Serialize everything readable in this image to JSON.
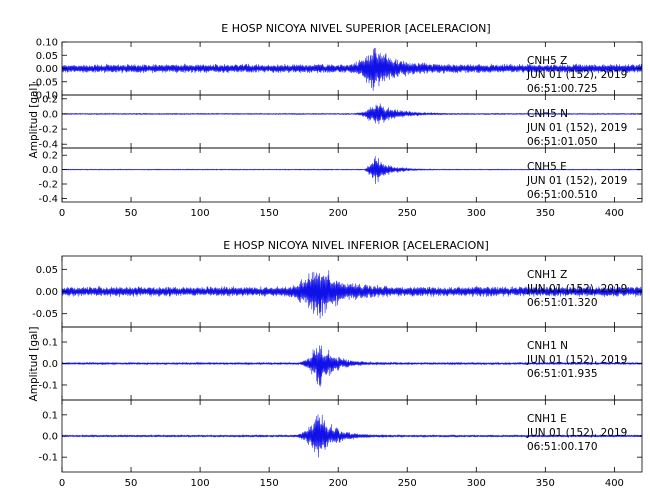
{
  "chart_data": [
    {
      "type": "line",
      "title": "E HOSP NICOYA NIVEL SUPERIOR [ACELERACION]",
      "ylabel": "Amplitud [gal]",
      "xlim": [
        0,
        420
      ],
      "xticks": [
        "0",
        "50",
        "100",
        "150",
        "200",
        "250",
        "300",
        "350",
        "400"
      ],
      "panels": [
        {
          "name": "CNH5 Z",
          "info": [
            "CNH5  Z",
            "JUN 01 (152), 2019",
            "06:51:00.725"
          ],
          "ylim": [
            -0.1,
            0.1
          ],
          "yticks": [
            {
              "v": 0.1,
              "t": "0.10"
            },
            {
              "v": 0.05,
              "t": "0.05"
            },
            {
              "v": 0.0,
              "t": "0.00"
            },
            {
              "v": -0.05,
              "t": "-0.05"
            },
            {
              "v": -0.1,
              "t": "-0.10"
            }
          ],
          "noise": 0.018,
          "peak": 0.085,
          "event_start": 205,
          "event_peak": 226,
          "decay": 14
        },
        {
          "name": "CNH5 N",
          "info": [
            "CNH5  N",
            "JUN 01 (152), 2019",
            "06:51:01.050"
          ],
          "ylim": [
            -0.45,
            0.25
          ],
          "yticks": [
            {
              "v": 0.2,
              "t": "0.2"
            },
            {
              "v": 0.0,
              "t": "0.0"
            },
            {
              "v": -0.2,
              "t": "-0.2"
            },
            {
              "v": -0.4,
              "t": "-0.4"
            }
          ],
          "noise": 0.01,
          "peak": 0.19,
          "event_start": 210,
          "event_peak": 228,
          "decay": 13
        },
        {
          "name": "CNH5 E",
          "info": [
            "CNH5  E",
            "JUN 01 (152), 2019",
            "06:51:00.510"
          ],
          "ylim": [
            -0.45,
            0.3
          ],
          "yticks": [
            {
              "v": 0.2,
              "t": "0.2"
            },
            {
              "v": 0.0,
              "t": "0.0"
            },
            {
              "v": -0.2,
              "t": "-0.2"
            },
            {
              "v": -0.4,
              "t": "-0.4"
            }
          ],
          "noise": 0.008,
          "peak": 0.25,
          "event_start": 218,
          "event_peak": 226,
          "decay": 9
        }
      ]
    },
    {
      "type": "line",
      "title": "E HOSP NICOYA NIVEL INFERIOR [ACELERACION]",
      "ylabel": "Amplitud [gal]",
      "xlim": [
        0,
        420
      ],
      "xticks": [
        "0",
        "50",
        "100",
        "150",
        "200",
        "250",
        "300",
        "350",
        "400"
      ],
      "panels": [
        {
          "name": "CNH1 Z",
          "info": [
            "CNH1  Z",
            "JUN 01 (152), 2019",
            "06:51:01.320"
          ],
          "ylim": [
            -0.08,
            0.08
          ],
          "yticks": [
            {
              "v": 0.05,
              "t": "0.05"
            },
            {
              "v": 0.0,
              "t": "0.00"
            },
            {
              "v": -0.05,
              "t": "-0.05"
            }
          ],
          "noise": 0.012,
          "peak": 0.07,
          "event_start": 160,
          "event_peak": 185,
          "decay": 14
        },
        {
          "name": "CNH1 N",
          "info": [
            "CNH1  N",
            "JUN 01 (152), 2019",
            "06:51:01.935"
          ],
          "ylim": [
            -0.17,
            0.17
          ],
          "yticks": [
            {
              "v": 0.1,
              "t": "0.1"
            },
            {
              "v": 0.0,
              "t": "0.0"
            },
            {
              "v": -0.1,
              "t": "-0.1"
            }
          ],
          "noise": 0.006,
          "peak": 0.13,
          "event_start": 170,
          "event_peak": 186,
          "decay": 10
        },
        {
          "name": "CNH1 E",
          "info": [
            "CNH1  E",
            "JUN 01 (152), 2019",
            "06:51:00.170"
          ],
          "ylim": [
            -0.17,
            0.17
          ],
          "yticks": [
            {
              "v": 0.1,
              "t": "0.1"
            },
            {
              "v": 0.0,
              "t": "0.0"
            },
            {
              "v": -0.1,
              "t": "-0.1"
            }
          ],
          "noise": 0.006,
          "peak": 0.14,
          "event_start": 168,
          "event_peak": 186,
          "decay": 10
        }
      ]
    }
  ],
  "colors": {
    "trace": "#1010e8",
    "axis": "#000000"
  }
}
